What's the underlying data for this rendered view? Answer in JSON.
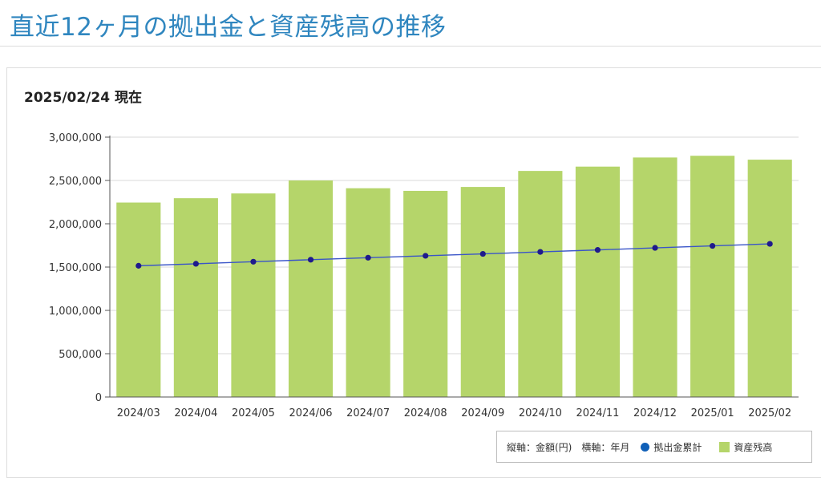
{
  "page": {
    "title": "直近12ヶ月の拠出金と資産残高の推移",
    "as_of": "2025/02/24 現在"
  },
  "legend": {
    "axis_note": "縦軸：金額(円)　横軸：年月",
    "contrib_label": "拠出金累計",
    "balance_label": "資産残高"
  },
  "colors": {
    "bar": "#b5d56a",
    "line": "#3a55c8",
    "marker": "#1f1a8c",
    "legend_dot": "#1060b8",
    "grid": "#d9d9d9",
    "axis": "#555555"
  },
  "chart_data": {
    "type": "bar",
    "title": "",
    "xlabel": "年月",
    "ylabel": "金額(円)",
    "ylim": [
      0,
      3000000
    ],
    "yticks": [
      0,
      500000,
      1000000,
      1500000,
      2000000,
      2500000,
      3000000
    ],
    "ytick_labels": [
      "0",
      "500,000",
      "1,000,000",
      "1,500,000",
      "2,000,000",
      "2,500,000",
      "3,000,000"
    ],
    "grid": true,
    "legend_position": "bottom-right",
    "categories": [
      "2024/03",
      "2024/04",
      "2024/05",
      "2024/06",
      "2024/07",
      "2024/08",
      "2024/09",
      "2024/10",
      "2024/11",
      "2024/12",
      "2025/01",
      "2025/02"
    ],
    "series": [
      {
        "name": "資産残高",
        "type": "bar",
        "values": [
          2245000,
          2295000,
          2350000,
          2500000,
          2410000,
          2380000,
          2425000,
          2610000,
          2660000,
          2765000,
          2785000,
          2740000
        ]
      },
      {
        "name": "拠出金累計",
        "type": "line",
        "values": [
          1515000,
          1538000,
          1562000,
          1585000,
          1608000,
          1630000,
          1652000,
          1675000,
          1698000,
          1722000,
          1745000,
          1768000
        ]
      }
    ]
  }
}
